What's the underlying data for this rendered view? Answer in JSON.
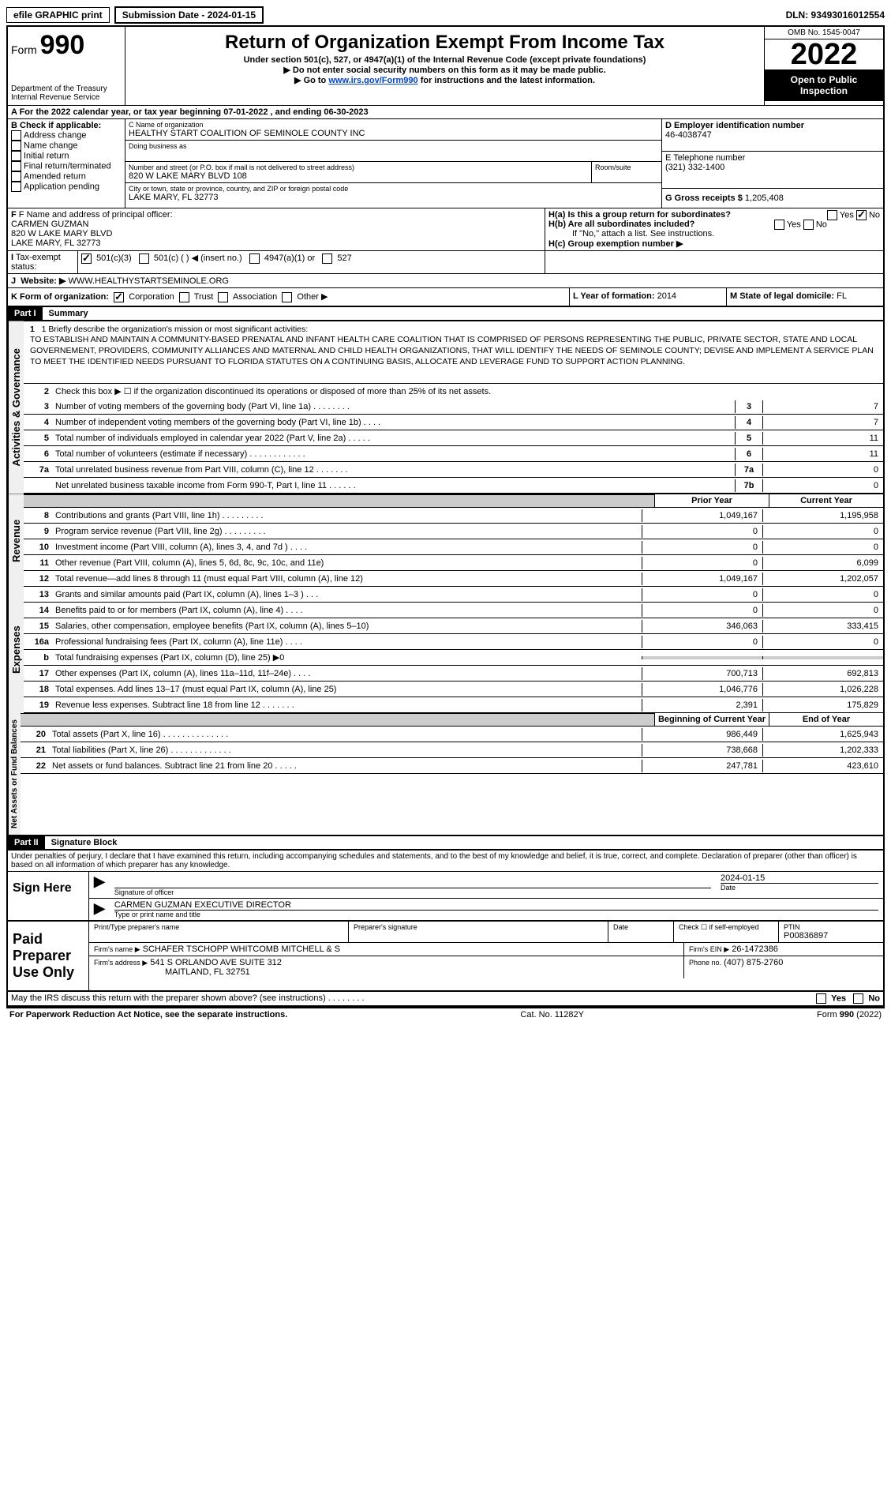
{
  "top": {
    "efile": "efile GRAPHIC print",
    "submission": "Submission Date - 2024-01-15",
    "dln": "DLN: 93493016012554"
  },
  "header": {
    "form": "Form",
    "form_num": "990",
    "dept": "Department of the Treasury",
    "irs": "Internal Revenue Service",
    "title": "Return of Organization Exempt From Income Tax",
    "subtitle": "Under section 501(c), 527, or 4947(a)(1) of the Internal Revenue Code (except private foundations)",
    "note1": "▶ Do not enter social security numbers on this form as it may be made public.",
    "note2_pre": "▶ Go to ",
    "note2_link": "www.irs.gov/Form990",
    "note2_post": " for instructions and the latest information.",
    "omb": "OMB No. 1545-0047",
    "year": "2022",
    "inspection": "Open to Public Inspection"
  },
  "lineA": "A For the 2022 calendar year, or tax year beginning 07-01-2022   , and ending 06-30-2023",
  "checkB": {
    "title": "B Check if applicable:",
    "items": [
      "Address change",
      "Name change",
      "Initial return",
      "Final return/terminated",
      "Amended return",
      "Application pending"
    ]
  },
  "orgC": {
    "label": "C Name of organization",
    "name": "HEALTHY START COALITION OF SEMINOLE COUNTY INC",
    "dba_label": "Doing business as",
    "addr_label": "Number and street (or P.O. box if mail is not delivered to street address)",
    "addr": "820 W LAKE MARY BLVD 108",
    "room_label": "Room/suite",
    "city_label": "City or town, state or province, country, and ZIP or foreign postal code",
    "city": "LAKE MARY, FL  32773"
  },
  "rightD": {
    "ein_label": "D Employer identification number",
    "ein": "46-4038747",
    "phone_label": "E Telephone number",
    "phone": "(321) 332-1400",
    "gross_label": "G Gross receipts $",
    "gross": "1,205,408"
  },
  "officerF": {
    "label": "F  Name and address of principal officer:",
    "name": "CARMEN GUZMAN",
    "addr1": "820 W LAKE MARY BLVD",
    "addr2": "LAKE MARY, FL  32773"
  },
  "sectionH": {
    "ha": "H(a)  Is this a group return for subordinates?",
    "hb": "H(b)  Are all subordinates included?",
    "hc_note": "If \"No,\" attach a list. See instructions.",
    "hc": "H(c)  Group exemption number ▶",
    "yes": "Yes",
    "no": "No"
  },
  "taxI": {
    "label": "Tax-exempt status:",
    "opts": [
      "501(c)(3)",
      "501(c) (  )  ◀ (insert no.)",
      "4947(a)(1) or",
      "527"
    ]
  },
  "websiteJ": {
    "label": "Website: ▶",
    "value": "WWW.HEALTHYSTARTSEMINOLE.ORG"
  },
  "formK": "K Form of organization:",
  "formK_opts": [
    "Corporation",
    "Trust",
    "Association",
    "Other ▶"
  ],
  "yearL": {
    "label": "L Year of formation:",
    "value": "2014"
  },
  "stateM": {
    "label": "M State of legal domicile:",
    "value": "FL"
  },
  "part1": {
    "header": "Part I",
    "title": "Summary"
  },
  "mission": {
    "intro": "1   Briefly describe the organization's mission or most significant activities:",
    "text": "TO ESTABLISH AND MAINTAIN A COMMUNITY-BASED PRENATAL AND INFANT HEALTH CARE COALITION THAT IS COMPRISED OF PERSONS REPRESENTING THE PUBLIC, PRIVATE SECTOR, STATE AND LOCAL GOVERNEMENT, PROVIDERS, COMMUNITY ALLIANCES AND MATERNAL AND CHILD HEALTH ORGANIZATIONS, THAT WILL IDENTIFY THE NEEDS OF SEMINOLE COUNTY; DEVISE AND IMPLEMENT A SERVICE PLAN TO MEET THE IDENTIFIED NEEDS PURSUANT TO FLORIDA STATUTES ON A CONTINUING BASIS, ALLOCATE AND LEVERAGE FUND TO SUPPORT ACTION PLANNING."
  },
  "line2": "Check this box ▶ ☐ if the organization discontinued its operations or disposed of more than 25% of its net assets.",
  "govLines": [
    {
      "n": "3",
      "d": "Number of voting members of the governing body (Part VI, line 1a)   .    .    .    .    .    .    .    .",
      "b": "3",
      "v": "7"
    },
    {
      "n": "4",
      "d": "Number of independent voting members of the governing body (Part VI, line 1b)   .    .    .    .",
      "b": "4",
      "v": "7"
    },
    {
      "n": "5",
      "d": "Total number of individuals employed in calendar year 2022 (Part V, line 2a)   .    .    .    .    .",
      "b": "5",
      "v": "11"
    },
    {
      "n": "6",
      "d": "Total number of volunteers (estimate if necessary)   .    .    .    .    .    .    .    .    .    .    .    .",
      "b": "6",
      "v": "11"
    },
    {
      "n": "7a",
      "d": "Total unrelated business revenue from Part VIII, column (C), line 12   .    .    .    .    .    .    .",
      "b": "7a",
      "v": "0"
    },
    {
      "n": "",
      "d": "Net unrelated business taxable income from Form 990-T, Part I, line 11   .    .    .    .    .    .",
      "b": "7b",
      "v": "0"
    }
  ],
  "colHeaders": {
    "prior": "Prior Year",
    "current": "Current Year",
    "begin": "Beginning of Current Year",
    "end": "End of Year"
  },
  "revenue": [
    {
      "n": "8",
      "d": "Contributions and grants (Part VIII, line 1h)   .    .    .    .    .    .    .    .    .",
      "p": "1,049,167",
      "c": "1,195,958"
    },
    {
      "n": "9",
      "d": "Program service revenue (Part VIII, line 2g)   .    .    .    .    .    .    .    .    .",
      "p": "0",
      "c": "0"
    },
    {
      "n": "10",
      "d": "Investment income (Part VIII, column (A), lines 3, 4, and 7d )   .    .    .    .",
      "p": "0",
      "c": "0"
    },
    {
      "n": "11",
      "d": "Other revenue (Part VIII, column (A), lines 5, 6d, 8c, 9c, 10c, and 11e)",
      "p": "0",
      "c": "6,099"
    },
    {
      "n": "12",
      "d": "Total revenue—add lines 8 through 11 (must equal Part VIII, column (A), line 12)",
      "p": "1,049,167",
      "c": "1,202,057"
    }
  ],
  "expenses": [
    {
      "n": "13",
      "d": "Grants and similar amounts paid (Part IX, column (A), lines 1–3 )   .    .    .",
      "p": "0",
      "c": "0"
    },
    {
      "n": "14",
      "d": "Benefits paid to or for members (Part IX, column (A), line 4)   .    .    .    .",
      "p": "0",
      "c": "0"
    },
    {
      "n": "15",
      "d": "Salaries, other compensation, employee benefits (Part IX, column (A), lines 5–10)",
      "p": "346,063",
      "c": "333,415"
    },
    {
      "n": "16a",
      "d": "Professional fundraising fees (Part IX, column (A), line 11e)   .    .    .    .",
      "p": "0",
      "c": "0"
    },
    {
      "n": "b",
      "d": "Total fundraising expenses (Part IX, column (D), line 25) ▶0",
      "p": "",
      "c": "",
      "grey": true
    },
    {
      "n": "17",
      "d": "Other expenses (Part IX, column (A), lines 11a–11d, 11f–24e)   .    .    .    .",
      "p": "700,713",
      "c": "692,813"
    },
    {
      "n": "18",
      "d": "Total expenses. Add lines 13–17 (must equal Part IX, column (A), line 25)",
      "p": "1,046,776",
      "c": "1,026,228"
    },
    {
      "n": "19",
      "d": "Revenue less expenses. Subtract line 18 from line 12   .    .    .    .    .    .    .",
      "p": "2,391",
      "c": "175,829"
    }
  ],
  "netassets": [
    {
      "n": "20",
      "d": "Total assets (Part X, line 16)   .    .    .    .    .    .    .    .    .    .    .    .    .    .",
      "p": "986,449",
      "c": "1,625,943"
    },
    {
      "n": "21",
      "d": "Total liabilities (Part X, line 26)   .    .    .    .    .    .    .    .    .    .    .    .    .",
      "p": "738,668",
      "c": "1,202,333"
    },
    {
      "n": "22",
      "d": "Net assets or fund balances. Subtract line 21 from line 20   .    .    .    .    .",
      "p": "247,781",
      "c": "423,610"
    }
  ],
  "sideLabels": {
    "gov": "Activities & Governance",
    "rev": "Revenue",
    "exp": "Expenses",
    "net": "Net Assets or Fund Balances"
  },
  "part2": {
    "header": "Part II",
    "title": "Signature Block"
  },
  "penalties": "Under penalties of perjury, I declare that I have examined this return, including accompanying schedules and statements, and to the best of my knowledge and belief, it is true, correct, and complete. Declaration of preparer (other than officer) is based on all information of which preparer has any knowledge.",
  "sign": {
    "here": "Sign Here",
    "sig_officer": "Signature of officer",
    "date_label": "Date",
    "date": "2024-01-15",
    "name": "CARMEN GUZMAN  EXECUTIVE DIRECTOR",
    "name_label": "Type or print name and title"
  },
  "preparer": {
    "title": "Paid Preparer Use Only",
    "name_label": "Print/Type preparer's name",
    "sig_label": "Preparer's signature",
    "date_label": "Date",
    "check_label": "Check ☐ if self-employed",
    "ptin_label": "PTIN",
    "ptin": "P00836897",
    "firm_label": "Firm's name    ▶",
    "firm": "SCHAFER TSCHOPP WHITCOMB MITCHELL & S",
    "ein_label": "Firm's EIN ▶",
    "ein": "26-1472386",
    "addr_label": "Firm's address ▶",
    "addr1": "541 S ORLANDO AVE SUITE 312",
    "addr2": "MAITLAND, FL  32751",
    "phone_label": "Phone no.",
    "phone": "(407) 875-2760"
  },
  "discuss": "May the IRS discuss this return with the preparer shown above? (see instructions)   .    .    .    .    .    .    .    .",
  "footer": {
    "left": "For Paperwork Reduction Act Notice, see the separate instructions.",
    "center": "Cat. No. 11282Y",
    "right": "Form 990 (2022)"
  }
}
